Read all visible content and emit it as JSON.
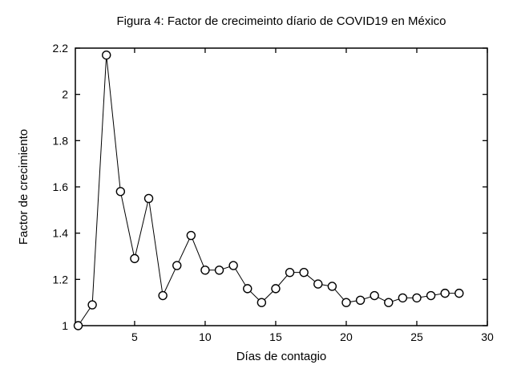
{
  "chart_data": {
    "type": "line",
    "title": "Figura 4: Factor de crecimeinto díario de COVID19 en México",
    "xlabel": "Días de contagio",
    "ylabel": "Factor de crecimiento",
    "x": [
      1,
      2,
      3,
      4,
      5,
      6,
      7,
      8,
      9,
      10,
      11,
      12,
      13,
      14,
      15,
      16,
      17,
      18,
      19,
      20,
      21,
      22,
      23,
      24,
      25,
      26,
      27,
      28
    ],
    "y": [
      1.0,
      1.09,
      2.17,
      1.58,
      1.29,
      1.55,
      1.13,
      1.26,
      1.39,
      1.24,
      1.24,
      1.26,
      1.16,
      1.1,
      1.16,
      1.23,
      1.23,
      1.18,
      1.17,
      1.1,
      1.11,
      1.13,
      1.1,
      1.12,
      1.12,
      1.13,
      1.14,
      1.14
    ],
    "xlim": [
      0.8,
      30
    ],
    "ylim": [
      1.0,
      2.2
    ],
    "xticks": [
      5,
      10,
      15,
      20,
      25,
      30
    ],
    "xtick_labels": [
      "5",
      "10",
      "15",
      "20",
      "25",
      "30"
    ],
    "yticks": [
      1.0,
      1.2,
      1.4,
      1.6,
      1.8,
      2.0,
      2.2
    ],
    "ytick_labels": [
      "1",
      "1.2",
      "1.4",
      "1.6",
      "1.8",
      "2",
      "2.2"
    ],
    "grid": false,
    "legend": null,
    "marker": "open-circle",
    "line_color": "#000000",
    "marker_fill": "#ffffff",
    "background": "#ffffff"
  }
}
